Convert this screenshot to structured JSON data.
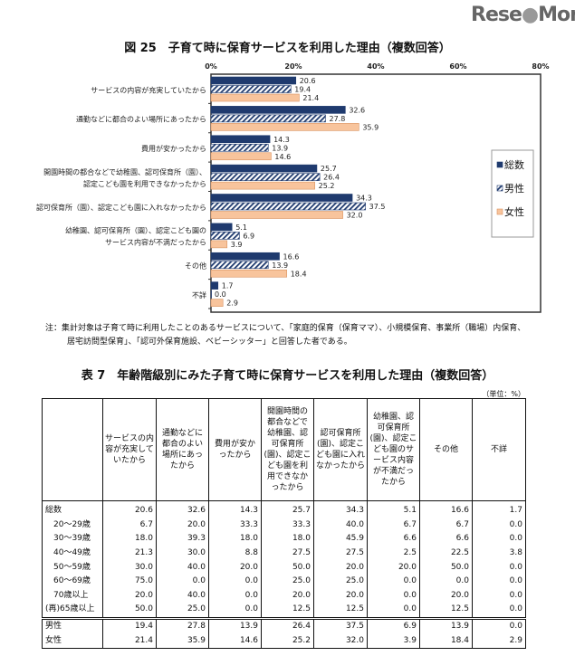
{
  "chart_title": "図 25　子育て時に保育サービスを利用した理由（複数回答）",
  "chart_data": {
    "type": "bar",
    "orientation": "horizontal",
    "title": "図 25　子育て時に保育サービスを利用した理由（複数回答）",
    "x_ticks": [
      "0%",
      "20%",
      "40%",
      "60%",
      "80%"
    ],
    "xlim": [
      0,
      80
    ],
    "legend_position": "right",
    "categories": [
      "サービスの内容が充実していたから",
      "通勤などに都合のよい場所にあったから",
      "費用が安かったから",
      "開園時間の都合などで幼稚園、認可保育所（園）、\n認定こども園を利用できなかったから",
      "認可保育所（園）、認定こども園に入れなかったから",
      "幼稚園、認可保育所（園）、認定こども園の\nサービス内容が不満だったから",
      "その他",
      "不詳"
    ],
    "series": [
      {
        "name": "総数",
        "color": "#1f3a6e",
        "style": "solid",
        "values": [
          20.6,
          32.6,
          14.3,
          25.7,
          34.3,
          5.1,
          16.6,
          1.7
        ]
      },
      {
        "name": "男性",
        "color": "#1f3a6e",
        "style": "hatched",
        "values": [
          19.4,
          27.8,
          13.9,
          26.4,
          37.5,
          6.9,
          13.9,
          0.0
        ]
      },
      {
        "name": "女性",
        "color": "#f8c49c",
        "style": "solid",
        "values": [
          21.4,
          35.9,
          14.6,
          25.2,
          32.0,
          3.9,
          18.4,
          2.9
        ]
      }
    ]
  },
  "note": {
    "line1": "注：集計対象は子育て時に利用したことのあるサービスについて、「家庭的保育（保育ママ）、小規模保育、事業所（職場）内保育、",
    "line2": "居宅訪問型保育」、「認可外保育施設、ベビーシッター」と回答した者である。"
  },
  "table": {
    "title": "表 7　年齢階級別にみた子育て時に保育サービスを利用した理由（複数回答）",
    "unit": "（単位：%）",
    "headers": [
      "",
      "サービスの内容が充実していたから",
      "通勤などに都合のよい場所にあったから",
      "費用が安かったから",
      "開園時間の都合などで幼稚園、認可保育所(園)、認定こども園を利用できなかったから",
      "認可保育所(園)、認定こども園に入れなかったから",
      "幼稚園、認可保育所(園)、認定こども園のサービス内容が不満だったから",
      "その他",
      "不詳"
    ],
    "rows": [
      {
        "label": "総数",
        "values": [
          "20.6",
          "32.6",
          "14.3",
          "25.7",
          "34.3",
          "5.1",
          "16.6",
          "1.7"
        ]
      },
      {
        "label": "20～29歳",
        "values": [
          "6.7",
          "20.0",
          "33.3",
          "33.3",
          "40.0",
          "6.7",
          "6.7",
          "0.0"
        ]
      },
      {
        "label": "30～39歳",
        "values": [
          "18.0",
          "39.3",
          "18.0",
          "18.0",
          "45.9",
          "6.6",
          "6.6",
          "0.0"
        ]
      },
      {
        "label": "40～49歳",
        "values": [
          "21.3",
          "30.0",
          "8.8",
          "27.5",
          "27.5",
          "2.5",
          "22.5",
          "3.8"
        ]
      },
      {
        "label": "50～59歳",
        "values": [
          "30.0",
          "40.0",
          "20.0",
          "50.0",
          "20.0",
          "20.0",
          "50.0",
          "0.0"
        ]
      },
      {
        "label": "60～69歳",
        "values": [
          "75.0",
          "0.0",
          "0.0",
          "25.0",
          "25.0",
          "0.0",
          "0.0",
          "0.0"
        ]
      },
      {
        "label": "70歳以上",
        "values": [
          "20.0",
          "40.0",
          "0.0",
          "20.0",
          "20.0",
          "0.0",
          "20.0",
          "0.0"
        ]
      },
      {
        "label": "(再)65歳以上",
        "values": [
          "50.0",
          "25.0",
          "0.0",
          "12.5",
          "12.5",
          "0.0",
          "12.5",
          "0.0"
        ]
      },
      {
        "label": "男性",
        "values": [
          "19.4",
          "27.8",
          "13.9",
          "26.4",
          "37.5",
          "6.9",
          "13.9",
          "0.0"
        ]
      },
      {
        "label": "女性",
        "values": [
          "21.4",
          "35.9",
          "14.6",
          "25.2",
          "32.0",
          "3.9",
          "18.4",
          "2.9"
        ]
      }
    ]
  },
  "watermark": "ReseMom"
}
